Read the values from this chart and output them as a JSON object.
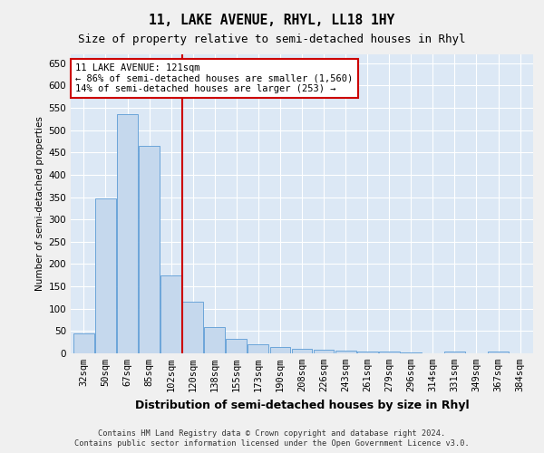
{
  "title": "11, LAKE AVENUE, RHYL, LL18 1HY",
  "subtitle": "Size of property relative to semi-detached houses in Rhyl",
  "xlabel": "Distribution of semi-detached houses by size in Rhyl",
  "ylabel": "Number of semi-detached properties",
  "footnote1": "Contains HM Land Registry data © Crown copyright and database right 2024.",
  "footnote2": "Contains public sector information licensed under the Open Government Licence v3.0.",
  "annotation_title": "11 LAKE AVENUE: 121sqm",
  "annotation_line1": "← 86% of semi-detached houses are smaller (1,560)",
  "annotation_line2": "14% of semi-detached houses are larger (253) →",
  "bar_labels": [
    "32sqm",
    "50sqm",
    "67sqm",
    "85sqm",
    "102sqm",
    "120sqm",
    "138sqm",
    "155sqm",
    "173sqm",
    "190sqm",
    "208sqm",
    "226sqm",
    "243sqm",
    "261sqm",
    "279sqm",
    "296sqm",
    "314sqm",
    "331sqm",
    "349sqm",
    "367sqm",
    "384sqm"
  ],
  "bar_values": [
    45,
    348,
    535,
    465,
    175,
    116,
    58,
    33,
    20,
    15,
    10,
    9,
    7,
    5,
    4,
    3,
    0,
    5,
    0,
    5,
    0
  ],
  "bar_color": "#c5d8ed",
  "bar_edge_color": "#5b9bd5",
  "vline_color": "#cc0000",
  "vline_x_index": 5,
  "annotation_box_color": "#ffffff",
  "annotation_box_edge_color": "#cc0000",
  "background_color": "#dce8f5",
  "grid_color": "#ffffff",
  "fig_bg_color": "#f0f0f0",
  "ylim": [
    0,
    670
  ],
  "yticks": [
    0,
    50,
    100,
    150,
    200,
    250,
    300,
    350,
    400,
    450,
    500,
    550,
    600,
    650
  ],
  "title_fontsize": 10.5,
  "subtitle_fontsize": 9,
  "xlabel_fontsize": 9,
  "ylabel_fontsize": 7.5,
  "tick_fontsize": 7.5,
  "annot_fontsize": 7.5,
  "footnote_fontsize": 6.2
}
